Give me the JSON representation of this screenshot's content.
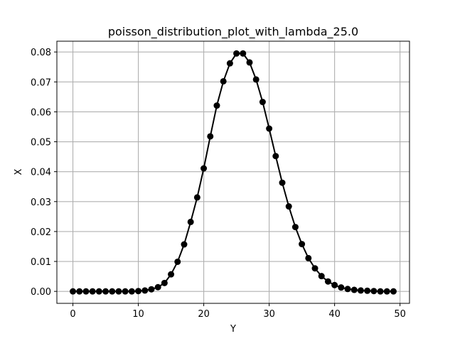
{
  "chart_data": {
    "type": "line",
    "title": "poisson_distribution_plot_with_lambda_25.0",
    "xlabel": "Y",
    "ylabel": "X",
    "xlim": [
      -2.45,
      51.45
    ],
    "ylim": [
      -0.004,
      0.0836
    ],
    "x_ticks": [
      0,
      10,
      20,
      30,
      40,
      50
    ],
    "x_tick_labels": [
      "0",
      "10",
      "20",
      "30",
      "40",
      "50"
    ],
    "y_ticks": [
      0.0,
      0.01,
      0.02,
      0.03,
      0.04,
      0.05,
      0.06,
      0.07,
      0.08
    ],
    "y_tick_labels": [
      "0.00",
      "0.01",
      "0.02",
      "0.03",
      "0.04",
      "0.05",
      "0.06",
      "0.07",
      "0.08"
    ],
    "grid": true,
    "marker": "circle",
    "color": "#000000",
    "series": [
      {
        "x": [
          0,
          1,
          2,
          3,
          4,
          5,
          6,
          7,
          8,
          9,
          10,
          11,
          12,
          13,
          14,
          15,
          16,
          17,
          18,
          19,
          20,
          21,
          22,
          23,
          24,
          25,
          26,
          27,
          28,
          29,
          30,
          31,
          32,
          33,
          34,
          35,
          36,
          37,
          38,
          39,
          40,
          41,
          42,
          43,
          44,
          45,
          46,
          47,
          48,
          49
        ],
        "y": [
          0.0,
          0.0,
          0.0,
          0.0,
          0.0,
          0.0,
          0.0,
          0.0,
          0.0,
          0.0,
          0.0001,
          0.0003,
          0.0007,
          0.0014,
          0.0028,
          0.0057,
          0.0099,
          0.0157,
          0.0232,
          0.0314,
          0.0411,
          0.0518,
          0.0621,
          0.0702,
          0.0762,
          0.0795,
          0.0795,
          0.0765,
          0.0708,
          0.0633,
          0.0544,
          0.0452,
          0.0363,
          0.0284,
          0.0215,
          0.0158,
          0.0111,
          0.0077,
          0.0051,
          0.0033,
          0.0021,
          0.0013,
          0.0008,
          0.0005,
          0.0003,
          0.0002,
          0.0001,
          0.0,
          0.0,
          0.0
        ]
      }
    ]
  }
}
